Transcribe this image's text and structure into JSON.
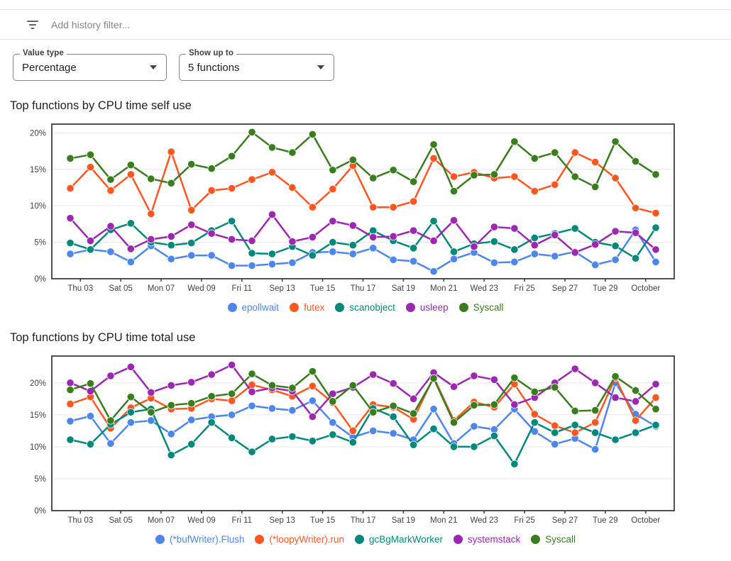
{
  "filter": {
    "placeholder": "Add history filter..."
  },
  "controls": [
    {
      "label": "Value type",
      "value": "Percentage"
    },
    {
      "label": "Show up to",
      "value": "5 functions"
    }
  ],
  "icons": {
    "filter": "filter-list-icon",
    "dropdown": "chevron-down-icon"
  },
  "chart_data": [
    {
      "type": "line",
      "title": "Top functions by CPU time self use",
      "unit": "%",
      "y_tick_labels": [
        "20%",
        "15%",
        "10%",
        "5%",
        "0%"
      ],
      "ylim": [
        0,
        21.2
      ],
      "grid": true,
      "legend_position": "bottom",
      "x_tick_labels": [
        "Thu 03",
        "Sat 05",
        "Mon 07",
        "Wed 09",
        "Fri 11",
        "Sep 13",
        "Tue 15",
        "Thu 17",
        "Sat 19",
        "Mon 21",
        "Wed 23",
        "Fri 25",
        "Sep 27",
        "Tue 29",
        "October"
      ],
      "series": [
        {
          "name": "epollwait",
          "color": "#4D86EC",
          "values": [
            3.4,
            4.0,
            3.7,
            2.3,
            4.5,
            2.7,
            3.2,
            3.2,
            1.8,
            1.8,
            2.0,
            2.2,
            3.6,
            3.7,
            3.4,
            4.2,
            2.6,
            2.4,
            1.0,
            2.7,
            3.6,
            2.2,
            2.3,
            3.4,
            3.1,
            3.7,
            1.9,
            2.6,
            6.7,
            2.3
          ]
        },
        {
          "name": "futex",
          "color": "#FF5722",
          "values": [
            12.4,
            15.3,
            12.1,
            14.3,
            8.9,
            17.4,
            9.4,
            12.1,
            12.4,
            13.6,
            14.6,
            12.5,
            9.8,
            12.3,
            15.5,
            9.8,
            9.8,
            10.6,
            16.5,
            14.0,
            14.6,
            13.8,
            14.0,
            12.0,
            12.9,
            17.3,
            16.0,
            13.8,
            9.7,
            9.0
          ]
        },
        {
          "name": "scanobject",
          "color": "#00897B",
          "values": [
            4.9,
            4.0,
            6.7,
            7.6,
            5.0,
            4.6,
            4.9,
            6.6,
            7.9,
            3.5,
            3.4,
            4.4,
            3.2,
            5.0,
            4.6,
            6.6,
            5.2,
            4.2,
            7.9,
            3.7,
            4.8,
            5.1,
            4.0,
            5.6,
            6.2,
            6.9,
            5.0,
            4.5,
            2.8,
            7.0
          ]
        },
        {
          "name": "usleep",
          "color": "#9C27B0",
          "values": [
            8.3,
            5.2,
            7.2,
            4.1,
            5.4,
            5.8,
            7.4,
            6.2,
            5.4,
            5.2,
            8.8,
            5.1,
            5.7,
            7.9,
            7.3,
            5.7,
            5.8,
            6.6,
            5.2,
            8.0,
            4.4,
            7.1,
            6.9,
            4.6,
            6.0,
            3.6,
            4.7,
            6.5,
            6.3,
            4.0
          ]
        },
        {
          "name": "Syscall",
          "color": "#3A7D1F",
          "values": [
            16.5,
            17.0,
            13.6,
            15.6,
            13.7,
            13.1,
            15.7,
            15.1,
            16.8,
            20.1,
            18.0,
            17.3,
            19.8,
            14.9,
            16.3,
            13.8,
            14.9,
            13.3,
            18.4,
            12.0,
            14.2,
            14.3,
            18.8,
            16.5,
            17.3,
            14.0,
            12.6,
            18.8,
            16.1,
            14.3
          ]
        }
      ]
    },
    {
      "type": "line",
      "title": "Top functions by CPU time total use",
      "unit": "%",
      "y_tick_labels": [
        "20%",
        "15%",
        "10%",
        "5%",
        "0%"
      ],
      "ylim": [
        0,
        24.2
      ],
      "grid": true,
      "legend_position": "bottom",
      "x_tick_labels": [
        "Thu 03",
        "Sat 05",
        "Mon 07",
        "Wed 09",
        "Fri 11",
        "Sep 13",
        "Tue 15",
        "Thu 17",
        "Sat 19",
        "Mon 21",
        "Wed 23",
        "Fri 25",
        "Sep 27",
        "Tue 29",
        "October"
      ],
      "series": [
        {
          "name": "(*bufWriter).Flush",
          "color": "#4D86EC",
          "values": [
            14.0,
            14.8,
            10.5,
            13.8,
            14.1,
            12.0,
            14.2,
            14.7,
            15.0,
            16.4,
            16.0,
            15.7,
            17.2,
            13.8,
            11.5,
            12.5,
            12.1,
            11.1,
            15.9,
            10.5,
            13.2,
            12.7,
            15.9,
            12.4,
            10.4,
            11.3,
            9.6,
            20.0,
            15.1,
            13.2
          ]
        },
        {
          "name": "(*loopyWriter).run",
          "color": "#FF5722",
          "values": [
            16.7,
            17.8,
            12.9,
            16.1,
            17.6,
            15.9,
            16.0,
            17.5,
            17.2,
            19.7,
            18.9,
            17.9,
            19.5,
            16.9,
            12.5,
            16.6,
            16.2,
            14.3,
            20.9,
            14.1,
            17.0,
            16.2,
            19.8,
            15.1,
            13.3,
            12.2,
            13.8,
            20.8,
            14.1,
            17.7
          ]
        },
        {
          "name": "gcBgMarkWorker",
          "color": "#00897B",
          "values": [
            11.1,
            10.4,
            13.5,
            15.4,
            15.9,
            8.7,
            10.4,
            13.8,
            11.4,
            9.2,
            11.2,
            11.6,
            10.9,
            11.9,
            10.7,
            16.0,
            14.7,
            10.3,
            12.8,
            10.0,
            10.0,
            11.7,
            7.3,
            13.8,
            12.2,
            13.4,
            12.2,
            11.1,
            12.2,
            13.4
          ]
        },
        {
          "name": "systemstack",
          "color": "#9C27B0",
          "values": [
            20.0,
            18.7,
            21.1,
            22.5,
            18.5,
            19.6,
            20.1,
            21.3,
            22.8,
            18.6,
            19.2,
            18.7,
            14.7,
            18.3,
            19.3,
            21.3,
            19.9,
            17.5,
            21.6,
            19.4,
            21.1,
            20.5,
            16.6,
            17.7,
            20.0,
            22.2,
            20.0,
            17.7,
            17.1,
            19.8
          ]
        },
        {
          "name": "Syscall",
          "color": "#3A7D1F",
          "values": [
            18.9,
            19.9,
            14.1,
            17.8,
            15.4,
            16.5,
            16.8,
            17.9,
            18.3,
            21.4,
            19.6,
            19.2,
            21.8,
            17.1,
            19.6,
            15.4,
            16.4,
            15.2,
            20.7,
            13.8,
            16.5,
            16.6,
            20.8,
            18.6,
            19.3,
            15.6,
            15.7,
            21.0,
            18.8,
            15.9
          ]
        }
      ]
    }
  ]
}
